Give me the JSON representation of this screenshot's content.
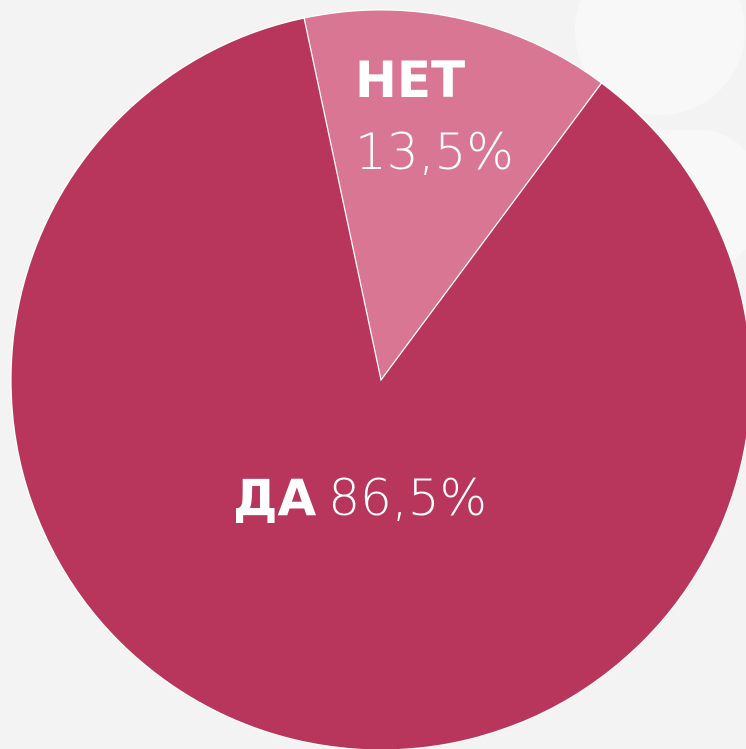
{
  "chart_data": {
    "type": "pie",
    "categories": [
      "НЕТ",
      "ДА"
    ],
    "values": [
      13.5,
      86.5
    ],
    "value_labels": [
      "13,5%",
      "86,5%"
    ],
    "colors": [
      "#d97694",
      "#b8355c"
    ]
  }
}
